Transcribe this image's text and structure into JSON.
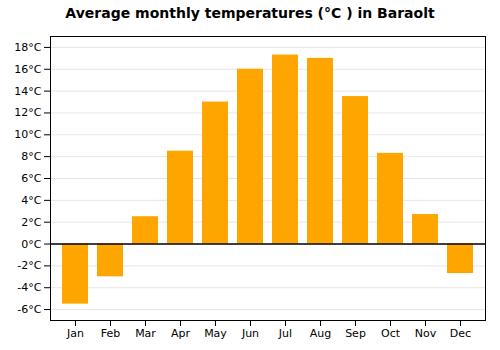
{
  "chart_data": {
    "type": "bar",
    "title": "Average monthly temperatures (°C ) in Baraolt",
    "categories": [
      "Jan",
      "Feb",
      "Mar",
      "Apr",
      "May",
      "Jun",
      "Jul",
      "Aug",
      "Sep",
      "Oct",
      "Nov",
      "Dec"
    ],
    "values": [
      -5.5,
      -3.0,
      2.5,
      8.5,
      13.0,
      16.0,
      17.3,
      17.0,
      13.5,
      8.3,
      2.7,
      -2.7
    ],
    "color": "#FFA500",
    "ylim": [
      -7,
      19
    ],
    "yticks": [
      {
        "value": -6,
        "label": "-6°C"
      },
      {
        "value": -4,
        "label": "-4°C"
      },
      {
        "value": -2,
        "label": "-2°C"
      },
      {
        "value": 0,
        "label": "0°C"
      },
      {
        "value": 2,
        "label": "2°C"
      },
      {
        "value": 4,
        "label": "4°C"
      },
      {
        "value": 6,
        "label": "6°C"
      },
      {
        "value": 8,
        "label": "8°C"
      },
      {
        "value": 10,
        "label": "10°C"
      },
      {
        "value": 12,
        "label": "12°C"
      },
      {
        "value": 14,
        "label": "14°C"
      },
      {
        "value": 16,
        "label": "16°C"
      },
      {
        "value": 18,
        "label": "18°C"
      }
    ],
    "grid": true
  }
}
